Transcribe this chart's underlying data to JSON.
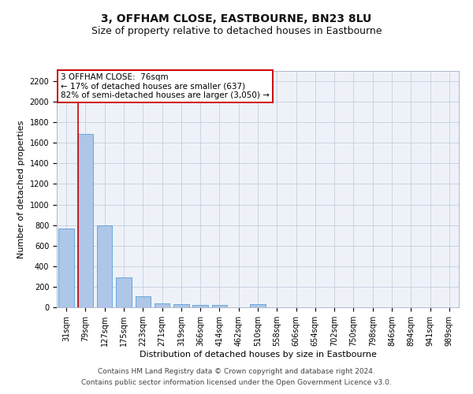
{
  "title": "3, OFFHAM CLOSE, EASTBOURNE, BN23 8LU",
  "subtitle": "Size of property relative to detached houses in Eastbourne",
  "xlabel": "Distribution of detached houses by size in Eastbourne",
  "ylabel": "Number of detached properties",
  "categories": [
    "31sqm",
    "79sqm",
    "127sqm",
    "175sqm",
    "223sqm",
    "271sqm",
    "319sqm",
    "366sqm",
    "414sqm",
    "462sqm",
    "510sqm",
    "558sqm",
    "606sqm",
    "654sqm",
    "702sqm",
    "750sqm",
    "798sqm",
    "846sqm",
    "894sqm",
    "941sqm",
    "989sqm"
  ],
  "values": [
    770,
    1690,
    800,
    295,
    110,
    38,
    28,
    20,
    20,
    0,
    28,
    0,
    0,
    0,
    0,
    0,
    0,
    0,
    0,
    0,
    0
  ],
  "bar_color": "#aec6e8",
  "bar_edge_color": "#5a9fd4",
  "vline_color": "#cc0000",
  "annotation_text": "3 OFFHAM CLOSE:  76sqm\n← 17% of detached houses are smaller (637)\n82% of semi-detached houses are larger (3,050) →",
  "annotation_box_color": "#ffffff",
  "annotation_box_edge_color": "#cc0000",
  "ylim": [
    0,
    2300
  ],
  "yticks": [
    0,
    200,
    400,
    600,
    800,
    1000,
    1200,
    1400,
    1600,
    1800,
    2000,
    2200
  ],
  "footer_line1": "Contains HM Land Registry data © Crown copyright and database right 2024.",
  "footer_line2": "Contains public sector information licensed under the Open Government Licence v3.0.",
  "bg_color": "#eef2f8",
  "title_fontsize": 10,
  "subtitle_fontsize": 9,
  "axis_label_fontsize": 8,
  "tick_fontsize": 7,
  "annotation_fontsize": 7.5,
  "footer_fontsize": 6.5
}
